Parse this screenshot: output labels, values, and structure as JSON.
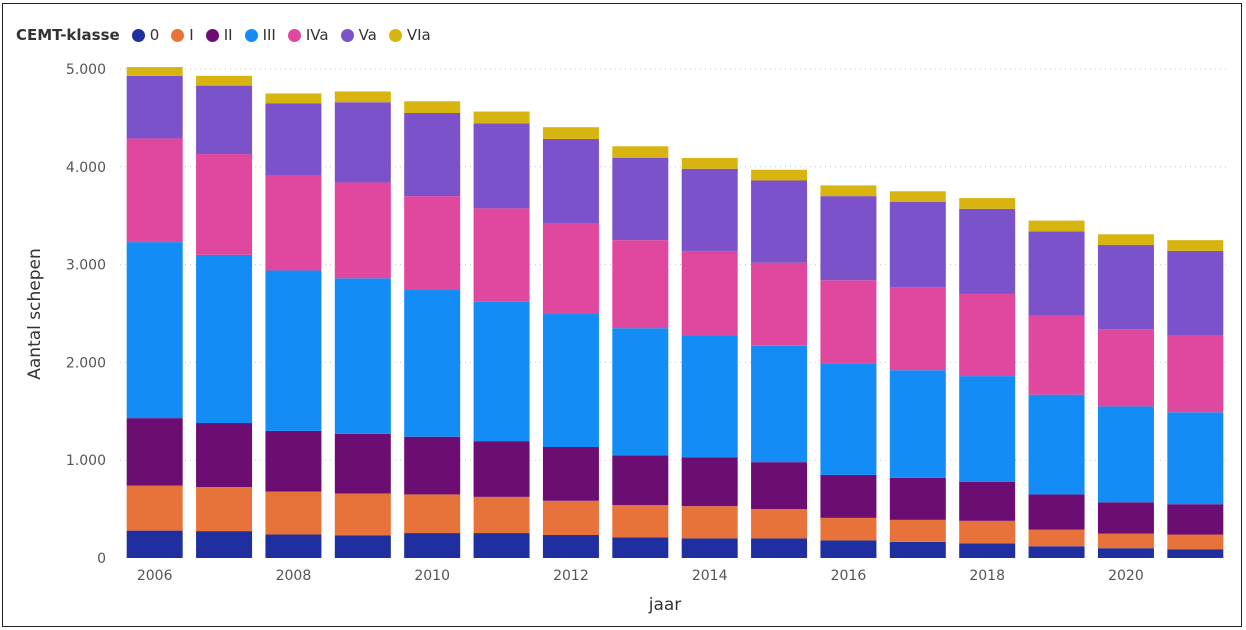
{
  "chart_data": {
    "type": "bar",
    "stacked": true,
    "legend_title": "CEMT-klasse",
    "legend_position": "top-left",
    "xlabel": "jaar",
    "ylabel": "Aantal schepen",
    "ylim": [
      0,
      5000
    ],
    "y_ticks": [
      0,
      1000,
      2000,
      3000,
      4000,
      5000
    ],
    "y_tick_labels": [
      "0",
      "1.000",
      "2.000",
      "3.000",
      "4.000",
      "5.000"
    ],
    "x_tick_labels": [
      "2006",
      "2008",
      "2010",
      "2012",
      "2014",
      "2016",
      "2018",
      "2020"
    ],
    "grid": "horizontal dotted",
    "categories": [
      "2006",
      "2007",
      "2008",
      "2009",
      "2010",
      "2011",
      "2012",
      "2013",
      "2014",
      "2015",
      "2016",
      "2017",
      "2018",
      "2019",
      "2020",
      "2021"
    ],
    "series": [
      {
        "name": "0",
        "color": "#1f2fa0",
        "values": [
          280,
          275,
          240,
          230,
          255,
          255,
          235,
          210,
          200,
          200,
          180,
          165,
          150,
          120,
          100,
          90
        ]
      },
      {
        "name": "I",
        "color": "#e8733a",
        "values": [
          460,
          450,
          440,
          430,
          395,
          370,
          350,
          330,
          330,
          300,
          230,
          225,
          230,
          170,
          150,
          150
        ]
      },
      {
        "name": "II",
        "color": "#6b0d72",
        "values": [
          690,
          655,
          620,
          610,
          590,
          570,
          550,
          510,
          500,
          480,
          440,
          430,
          400,
          360,
          320,
          310
        ]
      },
      {
        "name": "III",
        "color": "#148cf5",
        "values": [
          1800,
          1720,
          1640,
          1590,
          1500,
          1430,
          1360,
          1300,
          1240,
          1190,
          1140,
          1100,
          1080,
          1020,
          980,
          940
        ]
      },
      {
        "name": "IVa",
        "color": "#e0479e",
        "values": [
          1060,
          1030,
          970,
          980,
          960,
          950,
          930,
          900,
          870,
          850,
          850,
          850,
          840,
          810,
          790,
          790
        ]
      },
      {
        "name": "Va",
        "color": "#7b52c9",
        "values": [
          640,
          700,
          740,
          820,
          850,
          870,
          860,
          840,
          840,
          840,
          860,
          870,
          870,
          860,
          860,
          860
        ]
      },
      {
        "name": "VIa",
        "color": "#d8b411",
        "values": [
          90,
          100,
          100,
          110,
          120,
          120,
          120,
          120,
          110,
          110,
          110,
          110,
          110,
          110,
          110,
          110
        ]
      }
    ]
  }
}
